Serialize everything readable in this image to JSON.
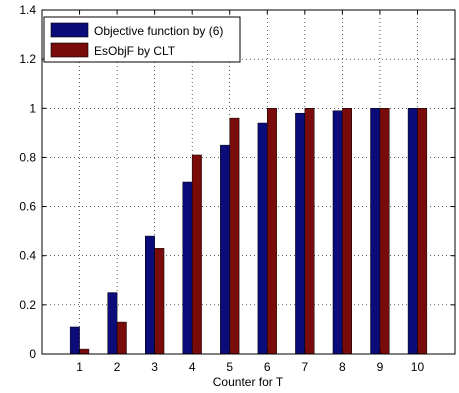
{
  "chart_data": {
    "type": "bar",
    "categories": [
      "1",
      "2",
      "3",
      "4",
      "5",
      "6",
      "7",
      "8",
      "9",
      "10"
    ],
    "series": [
      {
        "name": "Objective function by (6)",
        "color": "#0b0b7a",
        "values": [
          0.11,
          0.25,
          0.48,
          0.7,
          0.85,
          0.94,
          0.98,
          0.99,
          1.0,
          1.0
        ]
      },
      {
        "name": "EsObjF by CLT",
        "color": "#7a0b0b",
        "values": [
          0.02,
          0.13,
          0.43,
          0.81,
          0.96,
          1.0,
          1.0,
          1.0,
          1.0,
          1.0
        ]
      }
    ],
    "xlabel": "Counter for T",
    "ylabel": "",
    "title": "",
    "ylim": [
      0,
      1.4
    ],
    "xlim": [
      0,
      11
    ],
    "yticks": [
      "0",
      "0.2",
      "0.4",
      "0.6",
      "0.8",
      "1",
      "1.2",
      "1.4"
    ],
    "grid": true,
    "legend_position": "top-left"
  }
}
